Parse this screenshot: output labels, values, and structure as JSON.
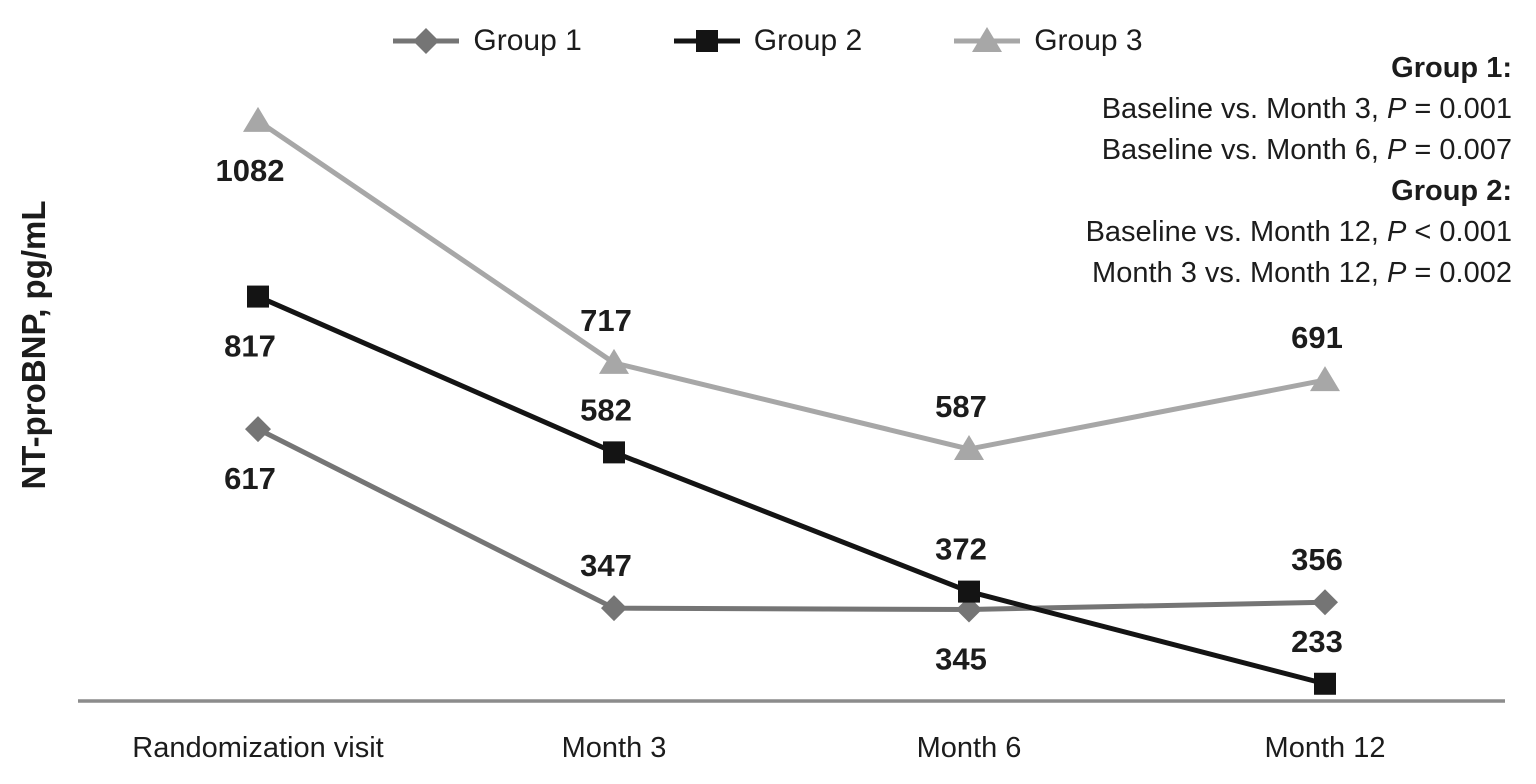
{
  "chart_data": {
    "type": "line",
    "title": "",
    "xlabel": "",
    "ylabel": "NT-proBNP, pg/mL",
    "categories": [
      "Randomization visit",
      "Month 3",
      "Month 6",
      "Month 12"
    ],
    "series": [
      {
        "name": "Group 1",
        "marker": "diamond",
        "color": "#757575",
        "values": [
          617,
          347,
          345,
          356
        ],
        "label_positions": [
          "below",
          "above",
          "below",
          "above"
        ]
      },
      {
        "name": "Group 2",
        "marker": "square",
        "color": "#141414",
        "values": [
          817,
          582,
          372,
          233
        ],
        "label_positions": [
          "below",
          "above",
          "above",
          "above"
        ]
      },
      {
        "name": "Group 3",
        "marker": "triangle",
        "color": "#a7a7a7",
        "values": [
          1082,
          717,
          587,
          691
        ],
        "label_positions": [
          "below",
          "above",
          "above",
          "above"
        ]
      }
    ],
    "ylim": [
      200,
      1150
    ],
    "grid": false,
    "legend_position": "top-center",
    "axis_color": "#8c8c8c",
    "text_color": "#1c1c1c"
  },
  "annotations": {
    "blocks": [
      {
        "heading": "Group 1:",
        "lines": [
          {
            "pre": "Baseline vs. Month 3, ",
            "p": "P",
            "rest": " = 0.001"
          },
          {
            "pre": "Baseline vs. Month 6, ",
            "p": "P",
            "rest": " = 0.007"
          }
        ]
      },
      {
        "heading": "Group 2:",
        "lines": [
          {
            "pre": "Baseline vs. Month 12, ",
            "p": "P",
            "rest": " < 0.001"
          },
          {
            "pre": "Month 3 vs. Month 12, ",
            "p": "P",
            "rest": " = 0.002"
          }
        ]
      }
    ]
  }
}
